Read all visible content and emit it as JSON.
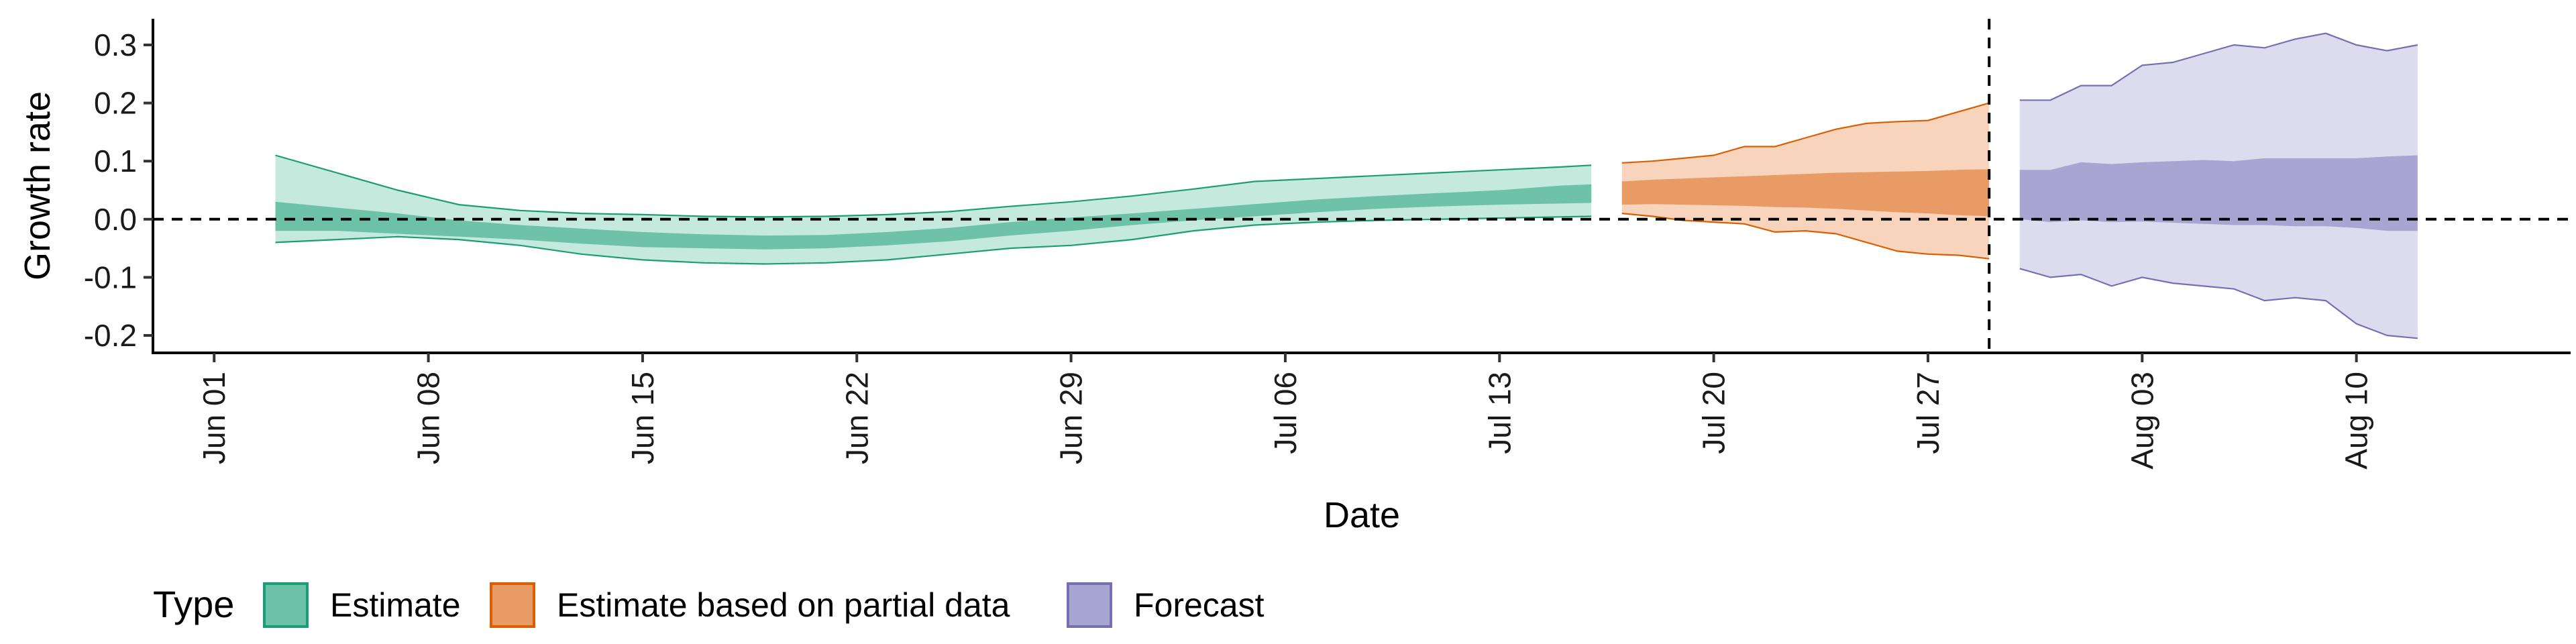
{
  "chart_data": {
    "type": "area",
    "xlabel": "Date",
    "ylabel": "Growth rate",
    "xlim": [
      "2020-05-30",
      "2020-08-17"
    ],
    "ylim": [
      -0.23,
      0.345
    ],
    "x_ticks": [
      "2020-06-01",
      "2020-06-08",
      "2020-06-15",
      "2020-06-22",
      "2020-06-29",
      "2020-07-06",
      "2020-07-13",
      "2020-07-20",
      "2020-07-27",
      "2020-08-03",
      "2020-08-10"
    ],
    "x_tick_labels": [
      "Jun 01",
      "Jun 08",
      "Jun 15",
      "Jun 22",
      "Jun 29",
      "Jul 06",
      "Jul 13",
      "Jul 20",
      "Jul 27",
      "Aug 03",
      "Aug 10"
    ],
    "y_ticks": [
      -0.2,
      -0.1,
      0.0,
      0.1,
      0.2,
      0.3
    ],
    "y_tick_labels": [
      "-0.2",
      "-0.1",
      "0.0",
      "0.1",
      "0.2",
      "0.3"
    ],
    "reference_lines": [
      {
        "axis": "y",
        "value": 0,
        "style": "dashed"
      },
      {
        "axis": "x",
        "value": "2020-07-29",
        "style": "dashed"
      }
    ],
    "grid": false,
    "legend": {
      "title": "Type",
      "position": "bottom-left",
      "items": [
        "Estimate",
        "Estimate based on partial data",
        "Forecast"
      ]
    },
    "colors": {
      "Estimate": {
        "outer": "#c6e9dd",
        "inner": "#6ec2a8",
        "line": "#1b9e77"
      },
      "Estimate based on partial data": {
        "outer": "#f8d4bc",
        "inner": "#e99b66",
        "line": "#d95f02"
      },
      "Forecast": {
        "outer": "#dcdcee",
        "inner": "#a9a5d2",
        "line": "#7570b3"
      }
    },
    "series": [
      {
        "name": "Estimate",
        "x": [
          "2020-06-03",
          "2020-06-05",
          "2020-06-07",
          "2020-06-09",
          "2020-06-11",
          "2020-06-13",
          "2020-06-15",
          "2020-06-17",
          "2020-06-19",
          "2020-06-21",
          "2020-06-23",
          "2020-06-25",
          "2020-06-27",
          "2020-06-29",
          "2020-07-01",
          "2020-07-03",
          "2020-07-05",
          "2020-07-07",
          "2020-07-09",
          "2020-07-11",
          "2020-07-13",
          "2020-07-15",
          "2020-07-16"
        ],
        "upper_90": [
          0.11,
          0.08,
          0.05,
          0.025,
          0.015,
          0.01,
          0.008,
          0.005,
          0.004,
          0.005,
          0.008,
          0.013,
          0.022,
          0.03,
          0.04,
          0.052,
          0.065,
          0.07,
          0.075,
          0.08,
          0.085,
          0.09,
          0.093
        ],
        "upper_50": [
          0.03,
          0.02,
          0.01,
          -0.002,
          -0.01,
          -0.016,
          -0.022,
          -0.026,
          -0.028,
          -0.027,
          -0.022,
          -0.015,
          -0.005,
          0.003,
          0.01,
          0.018,
          0.026,
          0.034,
          0.04,
          0.045,
          0.05,
          0.058,
          0.06
        ],
        "lower_50": [
          -0.02,
          -0.02,
          -0.025,
          -0.03,
          -0.035,
          -0.042,
          -0.048,
          -0.05,
          -0.052,
          -0.05,
          -0.045,
          -0.038,
          -0.028,
          -0.02,
          -0.01,
          -0.002,
          0.005,
          0.012,
          0.018,
          0.022,
          0.025,
          0.027,
          0.028
        ],
        "lower_90": [
          -0.04,
          -0.035,
          -0.03,
          -0.035,
          -0.045,
          -0.06,
          -0.07,
          -0.075,
          -0.077,
          -0.075,
          -0.07,
          -0.06,
          -0.05,
          -0.045,
          -0.035,
          -0.02,
          -0.01,
          -0.005,
          -0.002,
          0.0,
          0.002,
          0.004,
          0.005
        ]
      },
      {
        "name": "Estimate based on partial data",
        "x": [
          "2020-07-17",
          "2020-07-18",
          "2020-07-19",
          "2020-07-20",
          "2020-07-21",
          "2020-07-22",
          "2020-07-23",
          "2020-07-24",
          "2020-07-25",
          "2020-07-26",
          "2020-07-27",
          "2020-07-28",
          "2020-07-29"
        ],
        "upper_90": [
          0.097,
          0.1,
          0.105,
          0.11,
          0.125,
          0.125,
          0.14,
          0.155,
          0.165,
          0.168,
          0.17,
          0.185,
          0.2
        ],
        "upper_50": [
          0.065,
          0.068,
          0.07,
          0.072,
          0.074,
          0.076,
          0.078,
          0.08,
          0.081,
          0.082,
          0.083,
          0.085,
          0.086
        ],
        "lower_50": [
          0.025,
          0.026,
          0.025,
          0.024,
          0.023,
          0.021,
          0.02,
          0.018,
          0.015,
          0.012,
          0.01,
          0.007,
          0.005
        ],
        "lower_90": [
          0.01,
          0.005,
          -0.002,
          -0.005,
          -0.008,
          -0.022,
          -0.02,
          -0.025,
          -0.04,
          -0.055,
          -0.06,
          -0.062,
          -0.068
        ]
      },
      {
        "name": "Forecast",
        "x": [
          "2020-07-30",
          "2020-07-31",
          "2020-08-01",
          "2020-08-02",
          "2020-08-03",
          "2020-08-04",
          "2020-08-05",
          "2020-08-06",
          "2020-08-07",
          "2020-08-08",
          "2020-08-09",
          "2020-08-10",
          "2020-08-11",
          "2020-08-12"
        ],
        "upper_90": [
          0.205,
          0.205,
          0.23,
          0.23,
          0.265,
          0.27,
          0.285,
          0.3,
          0.295,
          0.31,
          0.32,
          0.3,
          0.29,
          0.3
        ],
        "upper_50": [
          0.085,
          0.085,
          0.098,
          0.095,
          0.098,
          0.1,
          0.102,
          0.1,
          0.105,
          0.105,
          0.105,
          0.105,
          0.108,
          0.11
        ],
        "lower_50": [
          0.0,
          -0.005,
          -0.002,
          -0.005,
          -0.004,
          -0.006,
          -0.008,
          -0.01,
          -0.01,
          -0.012,
          -0.012,
          -0.015,
          -0.02,
          -0.02
        ],
        "lower_90": [
          -0.085,
          -0.1,
          -0.095,
          -0.115,
          -0.1,
          -0.11,
          -0.115,
          -0.12,
          -0.14,
          -0.135,
          -0.14,
          -0.18,
          -0.2,
          -0.205
        ]
      }
    ]
  }
}
